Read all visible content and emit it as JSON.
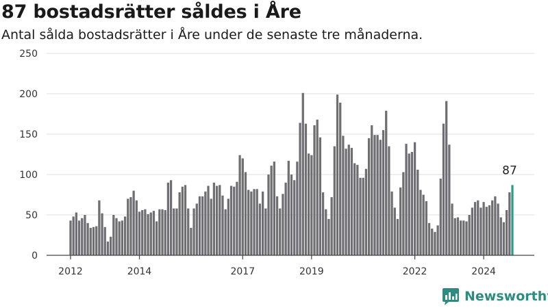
{
  "title": "87 bostadsrätter såldes i Åre",
  "subtitle": "Antal sålda bostadsrätter i Åre under de senaste tre månaderna.",
  "brand": "Newsworthy",
  "colors": {
    "bar": "#6f6e73",
    "highlight": "#2a9d8f",
    "grid": "#dcdcdc",
    "brand": "#2e8b7f"
  },
  "chart_data": {
    "type": "bar",
    "ylim": [
      0,
      250
    ],
    "yticks": [
      0,
      50,
      100,
      150,
      200,
      250
    ],
    "xlim": [
      2011.72,
      2025.15
    ],
    "xticks": [
      {
        "value": 2012,
        "label": "2012"
      },
      {
        "value": 2014,
        "label": "2014"
      },
      {
        "value": 2017,
        "label": "2017"
      },
      {
        "value": 2019,
        "label": "2019"
      },
      {
        "value": 2022,
        "label": "2022"
      },
      {
        "value": 2024,
        "label": "2024"
      }
    ],
    "start": 2012.0,
    "frequency": "monthly",
    "values": [
      43,
      48,
      53,
      43,
      46,
      50,
      40,
      34,
      35,
      36,
      68,
      52,
      35,
      17,
      23,
      50,
      46,
      42,
      43,
      48,
      70,
      72,
      80,
      68,
      54,
      56,
      57,
      51,
      53,
      55,
      42,
      57,
      57,
      56,
      90,
      93,
      58,
      58,
      78,
      85,
      87,
      58,
      34,
      58,
      64,
      73,
      73,
      79,
      86,
      70,
      90,
      86,
      87,
      74,
      57,
      70,
      86,
      85,
      91,
      124,
      120,
      103,
      81,
      79,
      82,
      82,
      64,
      79,
      58,
      100,
      111,
      116,
      73,
      58,
      76,
      90,
      117,
      100,
      93,
      116,
      164,
      201,
      163,
      126,
      124,
      161,
      168,
      146,
      78,
      57,
      45,
      72,
      135,
      199,
      189,
      148,
      132,
      137,
      133,
      114,
      112,
      96,
      96,
      107,
      145,
      161,
      149,
      149,
      143,
      155,
      179,
      135,
      79,
      59,
      45,
      84,
      103,
      138,
      126,
      128,
      140,
      106,
      81,
      75,
      67,
      40,
      33,
      29,
      37,
      95,
      163,
      191,
      137,
      64,
      46,
      47,
      43,
      43,
      42,
      50,
      59,
      66,
      68,
      59,
      66,
      60,
      62,
      68,
      73,
      64,
      47,
      41,
      56,
      78,
      87
    ],
    "annotation": {
      "index": 154,
      "label": "87"
    }
  }
}
